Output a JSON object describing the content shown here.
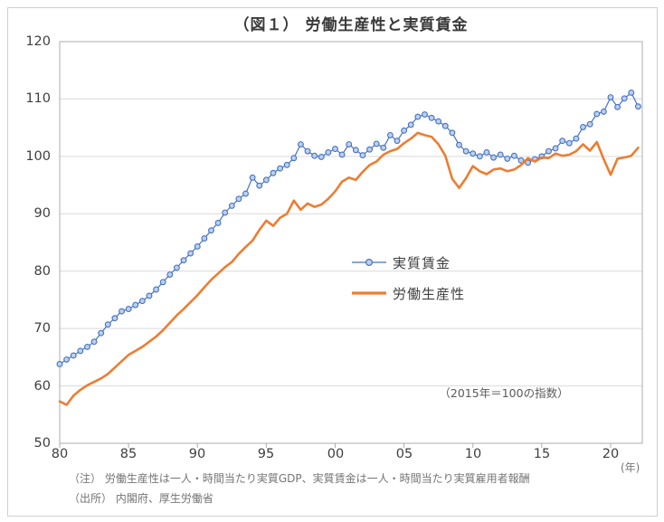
{
  "chart_data": {
    "type": "line",
    "title": "（図１） 労働生産性と実質賃金",
    "index_note": "（2015年＝100の指数）",
    "grid": true,
    "legend_position": "center-right",
    "x_axis": {
      "ticks": [
        "80",
        "85",
        "90",
        "95",
        "00",
        "05",
        "10",
        "15",
        "20"
      ],
      "tick_years": [
        1980,
        1985,
        1990,
        1995,
        2000,
        2005,
        2010,
        2015,
        2020
      ],
      "unit_label": "(年)",
      "range": [
        1980,
        2022.3
      ]
    },
    "y_axis": {
      "ticks": [
        "120",
        "110",
        "100",
        "90",
        "80",
        "70",
        "60",
        "50"
      ],
      "range": [
        50,
        120
      ]
    },
    "x_start": 1980,
    "x_step": 0.5,
    "series": [
      {
        "name": "実質賃金",
        "color": "#4472c4",
        "marker": "circle",
        "marker_fill": "#bdd0ea",
        "line_width": 1.2,
        "values": [
          63.8,
          64.6,
          65.3,
          66.1,
          66.8,
          67.7,
          69.2,
          70.7,
          71.8,
          73.0,
          73.4,
          74.1,
          74.8,
          75.7,
          76.8,
          78.1,
          79.4,
          80.6,
          81.9,
          83.1,
          84.3,
          85.7,
          87.1,
          88.4,
          90.2,
          91.4,
          92.6,
          93.5,
          96.3,
          94.9,
          95.9,
          97.1,
          97.9,
          98.5,
          99.7,
          102.1,
          100.9,
          100.1,
          99.9,
          100.7,
          101.3,
          100.3,
          102.1,
          101.1,
          100.2,
          101.2,
          102.2,
          101.5,
          103.7,
          102.7,
          104.5,
          105.5,
          106.9,
          107.3,
          106.7,
          106.1,
          105.3,
          104.1,
          102.0,
          100.9,
          100.5,
          100.0,
          100.7,
          99.8,
          100.3,
          99.6,
          100.1,
          99.3,
          98.9,
          99.5,
          100.0,
          100.9,
          101.4,
          102.7,
          102.3,
          103.1,
          105.1,
          105.6,
          107.4,
          107.8,
          110.3,
          108.6,
          110.1,
          111.1,
          108.7
        ]
      },
      {
        "name": "労働生産性",
        "color": "#ed7d31",
        "marker": "none",
        "line_width": 2.6,
        "values": [
          57.3,
          56.7,
          58.3,
          59.3,
          60.1,
          60.7,
          61.3,
          62.1,
          63.2,
          64.3,
          65.4,
          66.1,
          66.8,
          67.7,
          68.6,
          69.7,
          71.0,
          72.3,
          73.4,
          74.6,
          75.8,
          77.2,
          78.5,
          79.6,
          80.7,
          81.6,
          83.0,
          84.2,
          85.3,
          87.2,
          88.8,
          87.9,
          89.3,
          90.0,
          92.3,
          90.7,
          91.8,
          91.2,
          91.6,
          92.6,
          93.9,
          95.6,
          96.3,
          95.9,
          97.3,
          98.5,
          99.1,
          100.3,
          100.9,
          101.3,
          102.3,
          103.1,
          104.1,
          103.7,
          103.4,
          102.1,
          100.1,
          96.1,
          94.5,
          96.2,
          98.3,
          97.4,
          96.9,
          97.7,
          97.9,
          97.4,
          97.7,
          98.5,
          99.7,
          99.1,
          99.8,
          99.7,
          100.5,
          100.1,
          100.3,
          100.9,
          102.1,
          101.0,
          102.5,
          99.5,
          96.8,
          99.6,
          99.8,
          100.1,
          101.5
        ]
      }
    ]
  },
  "notes": {
    "note": "（注） 労働生産性は一人・時間当たり実質GDP、実質賃金は一人・時間当たり実質雇用者報酬",
    "source": "（出所） 内閣府、厚生労働省"
  }
}
